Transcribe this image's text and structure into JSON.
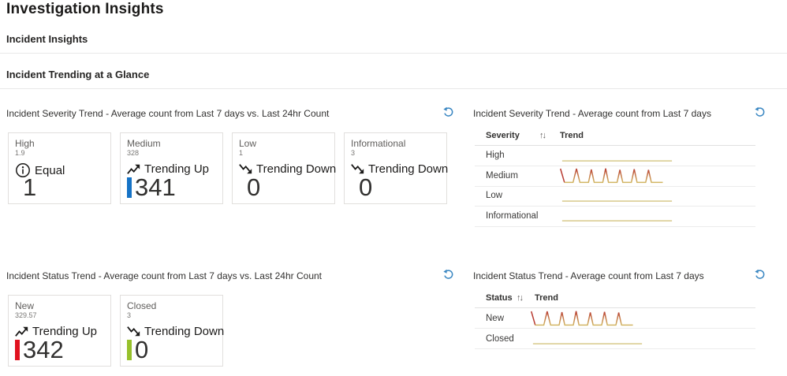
{
  "page": {
    "title": "Investigation Insights"
  },
  "sections": {
    "incident_insights": "Incident Insights",
    "incident_trending": "Incident Trending at a Glance"
  },
  "icons": {
    "sort": "↑↓"
  },
  "colors": {
    "accent_blue": "#1673c6",
    "alert_red": "#e1121f",
    "ok_green": "#97c12c",
    "refresh_blue": "#3a87c2",
    "spark_red": "#b83b31",
    "spark_yellow": "#d2b763",
    "spark_flat": "#d8c98b"
  },
  "panels": {
    "severity_cards": {
      "title": "Incident Severity Trend - Average count from Last 7 days vs. Last 24hr Count",
      "cards": [
        {
          "label": "High",
          "avg": "1.9",
          "trend": "Equal",
          "value": "1"
        },
        {
          "label": "Medium",
          "avg": "328",
          "trend": "Trending Up",
          "value": "341",
          "bar_color": "#1673c6"
        },
        {
          "label": "Low",
          "avg": "1",
          "trend": "Trending Down",
          "value": "0"
        },
        {
          "label": "Informational",
          "avg": "3",
          "trend": "Trending Down",
          "value": "0"
        }
      ]
    },
    "severity_table": {
      "title": "Incident Severity Trend - Average count from Last 7 days",
      "columns": [
        "Severity",
        "Trend"
      ],
      "rows": [
        {
          "label": "High",
          "spark": "flat"
        },
        {
          "label": "Medium",
          "spark": "spiky"
        },
        {
          "label": "Low",
          "spark": "flat"
        },
        {
          "label": "Informational",
          "spark": "flat"
        }
      ]
    },
    "status_cards": {
      "title": "Incident Status Trend - Average count from Last 7 days vs. Last 24hr Count",
      "cards": [
        {
          "label": "New",
          "avg": "329.57",
          "trend": "Trending Up",
          "value": "342",
          "bar_color": "#e1121f"
        },
        {
          "label": "Closed",
          "avg": "3",
          "trend": "Trending Down",
          "value": "0",
          "bar_color": "#97c12c"
        }
      ]
    },
    "status_table": {
      "title": "Incident Status Trend - Average count from Last 7 days",
      "columns": [
        "Status",
        "Trend"
      ],
      "rows": [
        {
          "label": "New",
          "spark": "spiky"
        },
        {
          "label": "Closed",
          "spark": "flat"
        }
      ]
    }
  },
  "sparklines": {
    "spiky": {
      "segments": [
        {
          "color": "#b83b31",
          "points": [
            [
              0.005,
              0.05
            ],
            [
              0.04,
              0.92
            ]
          ]
        },
        {
          "gradient": true,
          "points": [
            [
              0.04,
              0.92
            ],
            [
              0.115,
              0.92
            ],
            [
              0.145,
              0.05
            ],
            [
              0.175,
              0.92
            ],
            [
              0.25,
              0.92
            ],
            [
              0.275,
              0.1
            ],
            [
              0.3,
              0.92
            ],
            [
              0.375,
              0.92
            ],
            [
              0.4,
              0.04
            ],
            [
              0.425,
              0.92
            ],
            [
              0.5,
              0.92
            ],
            [
              0.525,
              0.12
            ],
            [
              0.55,
              0.92
            ],
            [
              0.625,
              0.92
            ],
            [
              0.65,
              0.08
            ],
            [
              0.675,
              0.92
            ],
            [
              0.75,
              0.92
            ],
            [
              0.775,
              0.13
            ],
            [
              0.8,
              0.92
            ],
            [
              0.9,
              0.92
            ]
          ]
        }
      ]
    },
    "flat": {
      "segments": [
        {
          "color": "#d8c98b",
          "points": [
            [
              0.02,
              0.85
            ],
            [
              0.98,
              0.85
            ]
          ]
        }
      ]
    }
  }
}
